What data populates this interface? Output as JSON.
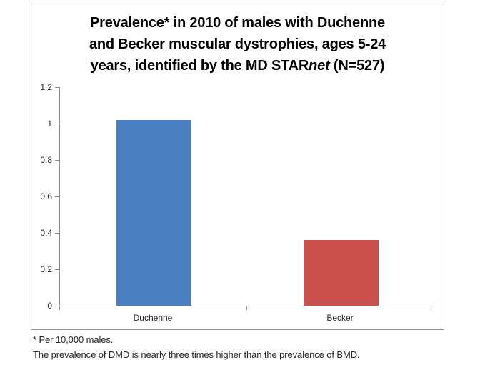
{
  "chart_data": {
    "type": "bar",
    "title": "Prevalence* in 2010 of males with Duchenne and Becker muscular dystrophies, ages 5-24 years, identified by the MD STARnet (N=527)",
    "title_lines": [
      "Prevalence* in 2010 of males with Duchenne",
      "and Becker muscular dystrophies, ages 5-24"
    ],
    "title_line3": {
      "prefix": "years, identified by the MD STAR",
      "italic": "net",
      "suffix": " (N=527)"
    },
    "categories": [
      "Duchenne",
      "Becker"
    ],
    "values": [
      1.02,
      0.36
    ],
    "bar_colors": [
      "#4A80C2",
      "#C9504C"
    ],
    "xlabel": "",
    "ylabel": "",
    "ylim": [
      0,
      1.2
    ],
    "ytick_values": [
      0,
      0.2,
      0.4,
      0.6,
      0.8,
      1,
      1.2
    ],
    "ytick_labels": [
      "0",
      "0.2",
      "0.4",
      "0.6",
      "0.8",
      "1",
      "1.2"
    ],
    "grid": false,
    "legend_position": "none",
    "axis_color": "#8C8C8C",
    "footnotes": [
      "* Per 10,000 males.",
      "The prevalence of DMD is nearly three times higher than the prevalence of BMD."
    ]
  }
}
